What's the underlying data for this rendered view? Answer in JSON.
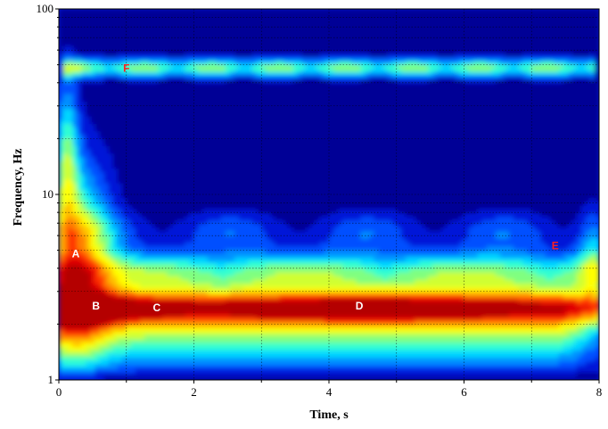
{
  "chart_data": {
    "type": "heatmap",
    "title": "",
    "xlabel": "Time, s",
    "ylabel": "Frequency, Hz",
    "xlim": [
      0,
      8
    ],
    "ylim": [
      1,
      100
    ],
    "y_scale": "log",
    "x_ticks": [
      0,
      2,
      4,
      6,
      8
    ],
    "x_tick_labels": [
      "0",
      "2",
      "4",
      "6",
      "8"
    ],
    "y_ticks": [
      1,
      10,
      100
    ],
    "y_tick_labels": [
      "1",
      "10",
      "100"
    ],
    "grid": true,
    "colormap": [
      "#000096",
      "#0019d8",
      "#0050ff",
      "#0090ff",
      "#00d8ff",
      "#30ffd0",
      "#80ff80",
      "#d0ff30",
      "#ffff00",
      "#ffc000",
      "#ff8000",
      "#ff3000",
      "#e00000",
      "#b40000"
    ],
    "features": [
      {
        "label": "F",
        "description": "narrow band near 50 Hz",
        "time_range": [
          0.1,
          7.9
        ],
        "freq": 48
      },
      {
        "label": "A",
        "time": 0.25,
        "freq": 4.8
      },
      {
        "label": "B",
        "time": 0.55,
        "freq": 2.5
      },
      {
        "label": "C",
        "time": 1.45,
        "freq": 2.45
      },
      {
        "label": "D",
        "time": 4.45,
        "freq": 2.5
      },
      {
        "label": "E",
        "time": 7.35,
        "freq": 5.3
      }
    ]
  }
}
